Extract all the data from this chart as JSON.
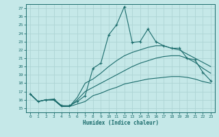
{
  "xlabel": "Humidex (Indice chaleur)",
  "bg_color": "#c5e8e8",
  "grid_color": "#aed4d4",
  "line_color": "#1a6b6b",
  "xlim": [
    -0.5,
    23.5
  ],
  "ylim": [
    14.5,
    27.5
  ],
  "xticks": [
    0,
    1,
    2,
    3,
    4,
    5,
    6,
    7,
    8,
    9,
    10,
    11,
    12,
    13,
    14,
    15,
    16,
    17,
    18,
    19,
    20,
    21,
    22,
    23
  ],
  "yticks": [
    15,
    16,
    17,
    18,
    19,
    20,
    21,
    22,
    23,
    24,
    25,
    26,
    27
  ],
  "line1_x": [
    0,
    1,
    2,
    3,
    4,
    5,
    6,
    7,
    8,
    9,
    10,
    11,
    12,
    13,
    14,
    15,
    16,
    17,
    18,
    19,
    20,
    21,
    22,
    23
  ],
  "line1_y": [
    16.7,
    15.8,
    16.0,
    16.1,
    15.3,
    15.3,
    15.8,
    16.5,
    19.8,
    20.4,
    23.8,
    25.0,
    27.2,
    22.9,
    23.0,
    24.5,
    23.0,
    22.5,
    22.2,
    22.2,
    21.0,
    20.8,
    19.3,
    18.3
  ],
  "line2_x": [
    0,
    1,
    2,
    3,
    4,
    5,
    6,
    7,
    8,
    9,
    10,
    11,
    12,
    13,
    14,
    15,
    16,
    17,
    18,
    19,
    20,
    21,
    22,
    23
  ],
  "line2_y": [
    16.7,
    15.8,
    16.0,
    16.0,
    15.3,
    15.2,
    16.3,
    18.0,
    18.5,
    19.2,
    20.0,
    20.7,
    21.3,
    21.7,
    22.0,
    22.3,
    22.5,
    22.5,
    22.2,
    22.0,
    21.5,
    21.0,
    20.5,
    20.0
  ],
  "line3_x": [
    0,
    1,
    2,
    3,
    4,
    5,
    6,
    7,
    8,
    9,
    10,
    11,
    12,
    13,
    14,
    15,
    16,
    17,
    18,
    19,
    20,
    21,
    22,
    23
  ],
  "line3_y": [
    16.7,
    15.8,
    16.0,
    16.0,
    15.2,
    15.2,
    16.0,
    17.0,
    17.5,
    18.0,
    18.5,
    19.0,
    19.5,
    20.0,
    20.4,
    20.7,
    21.0,
    21.2,
    21.3,
    21.3,
    21.0,
    20.5,
    19.8,
    19.2
  ],
  "line4_x": [
    0,
    1,
    2,
    3,
    4,
    5,
    6,
    7,
    8,
    9,
    10,
    11,
    12,
    13,
    14,
    15,
    16,
    17,
    18,
    19,
    20,
    21,
    22,
    23
  ],
  "line4_y": [
    16.7,
    15.8,
    16.0,
    16.0,
    15.2,
    15.2,
    15.5,
    15.8,
    16.5,
    16.8,
    17.2,
    17.5,
    17.9,
    18.1,
    18.3,
    18.5,
    18.6,
    18.7,
    18.8,
    18.8,
    18.7,
    18.5,
    18.2,
    18.0
  ]
}
